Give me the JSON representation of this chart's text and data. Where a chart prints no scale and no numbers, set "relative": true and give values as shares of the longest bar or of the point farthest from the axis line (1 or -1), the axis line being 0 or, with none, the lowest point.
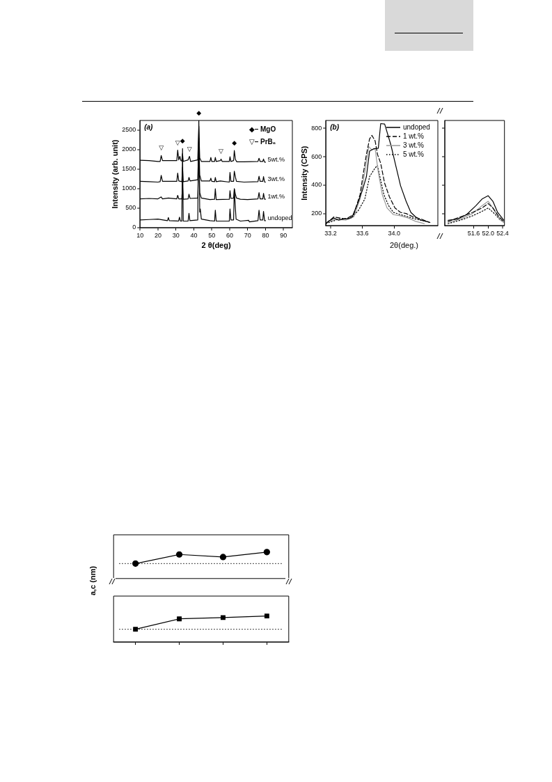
{
  "chart_data": [
    {
      "type": "line",
      "xlabel": "2 θ(deg)",
      "ylabel": "Intensity (arb. unit)",
      "xlim": [
        10,
        95
      ],
      "xticks": [
        10,
        20,
        30,
        40,
        50,
        60,
        70,
        80,
        90
      ],
      "ylim": [
        0,
        2750
      ],
      "yticks": [
        0,
        500,
        1000,
        1500,
        2000,
        2500
      ],
      "grid": false,
      "legend": false,
      "marker": "none",
      "annotations": [
        "(a)",
        "◆– MgO",
        "▽– PrB₆",
        {
          "text": "▽",
          "x": 21.8,
          "y": 1850
        },
        {
          "text": "▽",
          "x": 31,
          "y": 1990
        },
        {
          "text": "▽",
          "x": 37.6,
          "y": 1830
        },
        {
          "text": "▽",
          "x": 55.2,
          "y": 1760
        },
        {
          "text": "◆",
          "x": 33.7,
          "y": 2030
        },
        {
          "text": "◆",
          "x": 42.8,
          "y": 2750
        },
        {
          "text": "◆",
          "x": 62.6,
          "y": 1980
        }
      ],
      "series": [
        {
          "name": "undoped",
          "color": "#000000",
          "x": [
            10,
            15,
            20,
            24,
            25.3,
            25.8,
            26.3,
            31.5,
            32,
            32.5,
            33.3,
            33.7,
            34.1,
            36.8,
            37.3,
            37.8,
            42.2,
            42.8,
            43.3,
            43.6,
            44.2,
            49,
            51.6,
            52,
            52.5,
            59.8,
            60.2,
            60.7,
            62.2,
            62.6,
            63.2,
            63.6,
            66,
            70.6,
            71,
            75.8,
            76.4,
            77,
            78.5,
            78.9,
            79.5,
            80
          ],
          "values": [
            200,
            210,
            220,
            190,
            180,
            260,
            180,
            170,
            270,
            170,
            170,
            2030,
            170,
            170,
            370,
            180,
            200,
            2750,
            400,
            480,
            220,
            180,
            170,
            450,
            170,
            170,
            480,
            200,
            200,
            1000,
            500,
            220,
            170,
            190,
            150,
            180,
            450,
            200,
            200,
            420,
            180,
            180
          ]
        },
        {
          "name": "1wt.%",
          "color": "#000000",
          "x": [
            10,
            15,
            20,
            21.8,
            22.5,
            25.8,
            30.5,
            31,
            31.6,
            33.3,
            33.7,
            34.1,
            36.8,
            37.3,
            37.9,
            42.2,
            42.8,
            43.3,
            44.2,
            49,
            51.6,
            52,
            52.5,
            59.8,
            60.2,
            60.7,
            62.2,
            62.6,
            63.2,
            63.8,
            66,
            70,
            75.8,
            76.4,
            77,
            78.5,
            78.9,
            79.5,
            80
          ],
          "values": [
            740,
            750,
            740,
            790,
            740,
            760,
            740,
            830,
            740,
            740,
            1100,
            730,
            740,
            860,
            750,
            760,
            1900,
            900,
            760,
            720,
            730,
            1000,
            720,
            730,
            950,
            750,
            760,
            1000,
            860,
            760,
            730,
            720,
            740,
            900,
            740,
            740,
            880,
            730,
            730
          ]
        },
        {
          "name": "3wt.%",
          "color": "#000000",
          "x": [
            10,
            15,
            20,
            21.2,
            21.8,
            22.5,
            30.5,
            31,
            31.6,
            33.3,
            33.7,
            34.1,
            36.8,
            37.3,
            37.9,
            42.2,
            42.8,
            43.3,
            44.2,
            49,
            49.5,
            50,
            51.6,
            52,
            52.5,
            54.8,
            59.8,
            60.2,
            60.7,
            62.2,
            62.6,
            63.2,
            63.8,
            68,
            75.8,
            76.4,
            77,
            78.5,
            78.9,
            79.5,
            80
          ],
          "values": [
            1190,
            1180,
            1170,
            1180,
            1340,
            1190,
            1190,
            1400,
            1200,
            1180,
            1550,
            1180,
            1200,
            1290,
            1200,
            1230,
            2300,
            1350,
            1200,
            1200,
            1270,
            1190,
            1180,
            1290,
            1180,
            1200,
            1170,
            1420,
            1190,
            1190,
            1450,
            1300,
            1190,
            1170,
            1180,
            1320,
            1190,
            1190,
            1310,
            1170,
            1170
          ]
        },
        {
          "name": "5wt.%",
          "color": "#000000",
          "x": [
            10,
            15,
            20,
            21.2,
            21.8,
            22.5,
            30.5,
            31,
            31.6,
            32.2,
            32.8,
            33.3,
            33.7,
            34.1,
            36.8,
            37.6,
            38.2,
            42.2,
            42.8,
            43.3,
            44.2,
            49,
            49.5,
            50,
            51.6,
            52,
            52.5,
            54.8,
            55.2,
            55.8,
            59.8,
            60.2,
            60.7,
            62.2,
            62.6,
            63.2,
            64,
            68,
            75.8,
            76.4,
            77,
            78.5,
            78.9,
            79.5,
            80
          ],
          "values": [
            1730,
            1720,
            1700,
            1700,
            1850,
            1720,
            1720,
            1990,
            1740,
            1830,
            1720,
            1710,
            1900,
            1700,
            1740,
            1830,
            1700,
            1740,
            2600,
            1790,
            1700,
            1700,
            1800,
            1700,
            1700,
            1800,
            1700,
            1720,
            1760,
            1700,
            1700,
            1820,
            1700,
            1720,
            1980,
            1750,
            1690,
            1690,
            1700,
            1780,
            1700,
            1700,
            1760,
            1680,
            1680
          ]
        }
      ]
    },
    {
      "type": "line",
      "xlabel": "2θ(deg.)",
      "ylabel": "Intensity (CPS)",
      "xlim": [
        33.14,
        34.55
      ],
      "xticks": [
        33.2,
        33.6,
        {
          "value": 34,
          "label": "34.0"
        }
      ],
      "ylim": [
        115,
        855
      ],
      "yticks": [
        200,
        400,
        600,
        800
      ],
      "grid": false,
      "legend": "top right",
      "marker": "none",
      "annotations": [
        "(b)"
      ],
      "series": [
        {
          "name": "undoped",
          "color": "#000000",
          "line_style": "solid",
          "x": [
            33.14,
            33.17,
            33.24,
            33.3,
            33.36,
            33.43,
            33.47,
            33.54,
            33.6,
            33.65,
            33.69,
            33.74,
            33.8,
            33.83,
            33.88,
            33.96,
            34.02,
            34.08,
            34.15,
            34.21,
            34.27,
            34.34,
            34.4,
            34.45
          ],
          "values": [
            130,
            146,
            169,
            154,
            162,
            165,
            177,
            271,
            365,
            460,
            640,
            656,
            660,
            833,
            830,
            680,
            538,
            397,
            287,
            209,
            177,
            154,
            146,
            138
          ]
        },
        {
          "name": "1 wt.%",
          "color": "#000000",
          "line_style": "dashed",
          "x": [
            33.14,
            33.24,
            33.39,
            33.49,
            33.57,
            33.6,
            33.65,
            33.69,
            33.72,
            33.76,
            33.79,
            33.83,
            33.88,
            33.94,
            34.01,
            34.08,
            34.15,
            34.24,
            34.34,
            34.45
          ],
          "values": [
            130,
            177,
            162,
            193,
            334,
            444,
            616,
            726,
            750,
            711,
            616,
            554,
            413,
            318,
            240,
            209,
            201,
            177,
            162,
            138
          ]
        },
        {
          "name": "3 wt.%",
          "color": "#999999",
          "line_style": "solid",
          "x": [
            33.14,
            33.27,
            33.39,
            33.49,
            33.57,
            33.63,
            33.68,
            33.72,
            33.76,
            33.8,
            33.85,
            33.91,
            33.99,
            34.08,
            34.18,
            34.27,
            34.38
          ],
          "values": [
            138,
            162,
            154,
            177,
            303,
            491,
            671,
            648,
            656,
            491,
            334,
            240,
            193,
            185,
            169,
            146,
            130
          ]
        },
        {
          "name": "5 wt.%",
          "color": "#000000",
          "line_style": "dotted",
          "x": [
            33.14,
            33.3,
            33.46,
            33.55,
            33.63,
            33.69,
            33.76,
            33.79,
            33.82,
            33.87,
            33.93,
            33.99,
            34.08,
            34.18,
            34.27,
            34.4
          ],
          "values": [
            130,
            162,
            169,
            224,
            303,
            460,
            522,
            538,
            460,
            334,
            256,
            209,
            193,
            177,
            162,
            146
          ]
        }
      ]
    },
    {
      "type": "line",
      "xlim": [
        50.8,
        52.45
      ],
      "xticks": [
        51.6,
        {
          "value": 52,
          "label": "52.0"
        },
        52.4
      ],
      "ylim": [
        115,
        855
      ],
      "yticks": [
        200,
        400,
        600,
        800
      ],
      "tick_labels": "x",
      "grid": false,
      "marker": "none",
      "series": [
        {
          "color": "#000000",
          "line_style": "solid",
          "x": [
            50.89,
            51.15,
            51.4,
            51.66,
            51.83,
            52,
            52.13,
            52.26,
            52.43
          ],
          "values": [
            154,
            162,
            193,
            256,
            303,
            326,
            287,
            209,
            154
          ]
        },
        {
          "color": "#000000",
          "line_style": "dashed",
          "x": [
            50.89,
            51.23,
            51.57,
            51.83,
            52,
            52.13,
            52.3,
            52.43
          ],
          "values": [
            146,
            177,
            209,
            240,
            271,
            240,
            177,
            146
          ]
        },
        {
          "color": "#999999",
          "line_style": "solid",
          "x": [
            50.89,
            51.23,
            51.57,
            51.83,
            52,
            52.17,
            52.34,
            52.43
          ],
          "values": [
            138,
            162,
            201,
            256,
            287,
            224,
            154,
            138
          ]
        },
        {
          "color": "#000000",
          "line_style": "dotted",
          "x": [
            50.89,
            51.23,
            51.57,
            51.83,
            52,
            52.17,
            52.34,
            52.43
          ],
          "values": [
            130,
            154,
            185,
            216,
            240,
            201,
            154,
            146
          ]
        }
      ]
    },
    {
      "type": "line",
      "ylabel": "a,c (nm)",
      "relative": true,
      "categories": [
        null,
        null,
        null,
        null
      ],
      "tick_labels": false,
      "grid": false,
      "marker": "circle",
      "ref_lines": [
        {
          "axis": "y",
          "value": 0,
          "color": "#000000",
          "line_style": "dotted"
        }
      ],
      "series": [
        {
          "color": "#000000",
          "values": [
            0,
            0.79,
            0.57,
            1
          ]
        }
      ]
    },
    {
      "type": "line",
      "relative": true,
      "categories": [
        null,
        null,
        null,
        null
      ],
      "tick_labels": false,
      "grid": false,
      "marker": "square",
      "ref_lines": [
        {
          "axis": "y",
          "value": 0.49,
          "color": "#000000",
          "line_style": "dotted"
        }
      ],
      "series": [
        {
          "color": "#000000",
          "values": [
            0.49,
            0.89,
            0.94,
            1
          ]
        }
      ]
    }
  ]
}
